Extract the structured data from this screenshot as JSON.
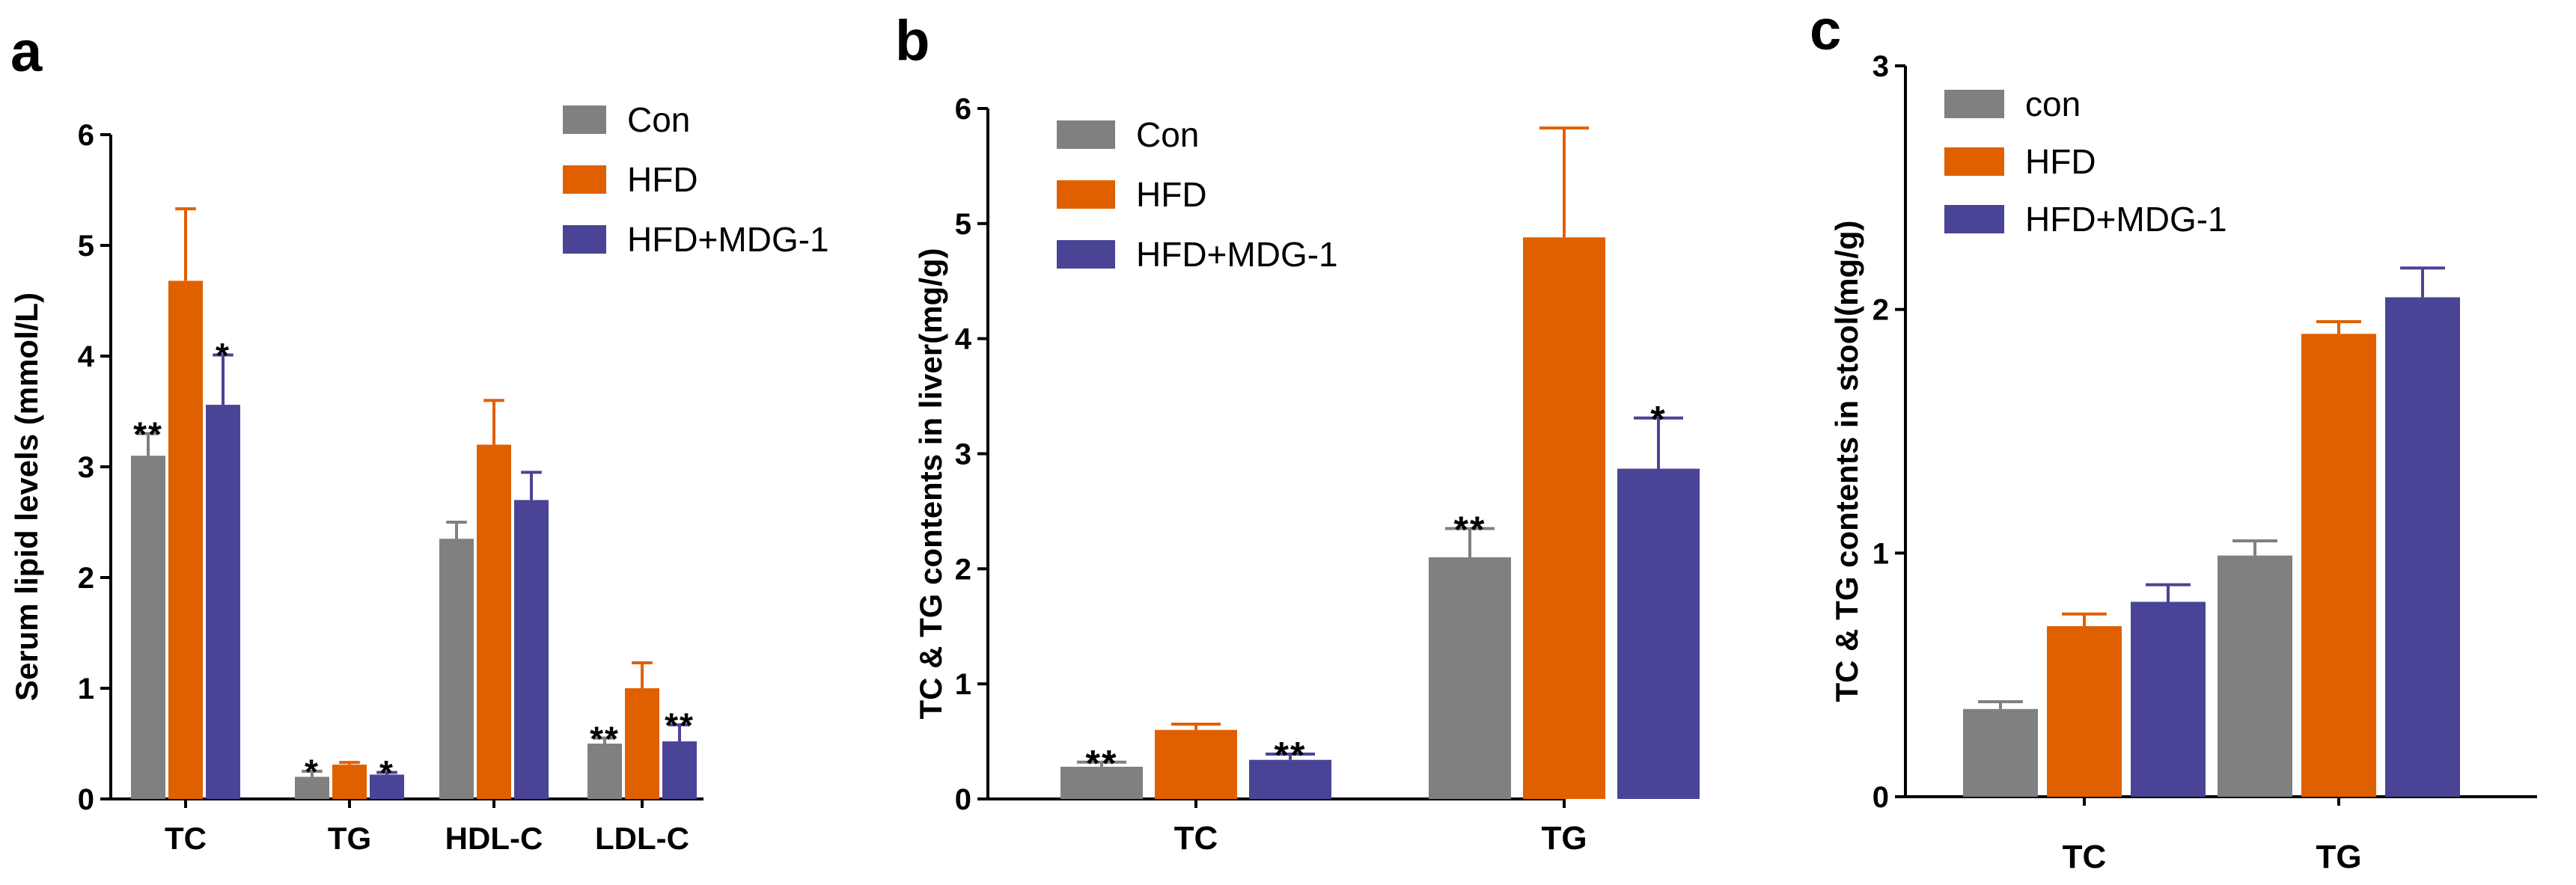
{
  "colors": {
    "series": [
      "#808080",
      "#e06000",
      "#4a4496"
    ],
    "axis": "#000000",
    "background": "#ffffff"
  },
  "chart_data": [
    {
      "panel_label": "a",
      "type": "bar",
      "ylabel": "Serum lipid levels (mmol/L)",
      "xlabel": "",
      "ylim": [
        0,
        6
      ],
      "yticks": [
        0,
        1,
        2,
        3,
        4,
        5,
        6
      ],
      "ytick_labels": [
        "0",
        "1",
        "2",
        "3",
        "4",
        "5",
        "6"
      ],
      "categories": [
        "TC",
        "TG",
        "HDL-C",
        "LDL-C"
      ],
      "legend_position": "top-right",
      "grid": false,
      "series": [
        {
          "name": "Con",
          "values": [
            3.1,
            0.2,
            2.35,
            0.5
          ],
          "errors": [
            0.2,
            0.05,
            0.15,
            0.05
          ],
          "sig": [
            "**",
            "*",
            "",
            "**"
          ]
        },
        {
          "name": "HFD",
          "values": [
            4.68,
            0.31,
            3.2,
            1.0
          ],
          "errors": [
            0.65,
            0.02,
            0.4,
            0.23
          ],
          "sig": [
            "",
            "",
            "",
            ""
          ]
        },
        {
          "name": "HFD+MDG-1",
          "values": [
            3.56,
            0.22,
            2.7,
            0.52
          ],
          "errors": [
            0.45,
            0.02,
            0.25,
            0.15
          ],
          "sig": [
            "*",
            "*",
            "",
            "**"
          ]
        }
      ]
    },
    {
      "panel_label": "b",
      "type": "bar",
      "ylabel": "TC & TG contents in liver(mg/g)",
      "xlabel": "",
      "ylim": [
        0,
        6
      ],
      "yticks": [
        0,
        1,
        2,
        3,
        4,
        5,
        6
      ],
      "ytick_labels": [
        "0",
        "1",
        "2",
        "3",
        "4",
        "5",
        "6"
      ],
      "categories": [
        "TC",
        "TG"
      ],
      "legend_position": "top-left",
      "grid": false,
      "series": [
        {
          "name": "Con",
          "values": [
            0.28,
            2.1
          ],
          "errors": [
            0.04,
            0.25
          ],
          "sig": [
            "**",
            "**"
          ]
        },
        {
          "name": "HFD",
          "values": [
            0.6,
            4.88
          ],
          "errors": [
            0.05,
            0.95
          ],
          "sig": [
            "",
            ""
          ]
        },
        {
          "name": "HFD+MDG-1",
          "values": [
            0.34,
            2.87
          ],
          "errors": [
            0.05,
            0.44
          ],
          "sig": [
            "**",
            "*"
          ]
        }
      ]
    },
    {
      "panel_label": "c",
      "type": "bar",
      "ylabel": "TC & TG contents in stool(mg/g)",
      "xlabel": "",
      "ylim": [
        0,
        3
      ],
      "yticks": [
        0,
        1,
        2,
        3
      ],
      "ytick_labels": [
        "0",
        "1",
        "2",
        "3"
      ],
      "categories": [
        "TC",
        "TG"
      ],
      "legend_position": "top-left",
      "grid": false,
      "series": [
        {
          "name": "con",
          "values": [
            0.36,
            0.99
          ],
          "errors": [
            0.03,
            0.06
          ],
          "sig": [
            "",
            ""
          ]
        },
        {
          "name": "HFD",
          "values": [
            0.7,
            1.9
          ],
          "errors": [
            0.05,
            0.05
          ],
          "sig": [
            "",
            ""
          ]
        },
        {
          "name": "HFD+MDG-1",
          "values": [
            0.8,
            2.05
          ],
          "errors": [
            0.07,
            0.12
          ],
          "sig": [
            "",
            ""
          ]
        }
      ]
    }
  ]
}
